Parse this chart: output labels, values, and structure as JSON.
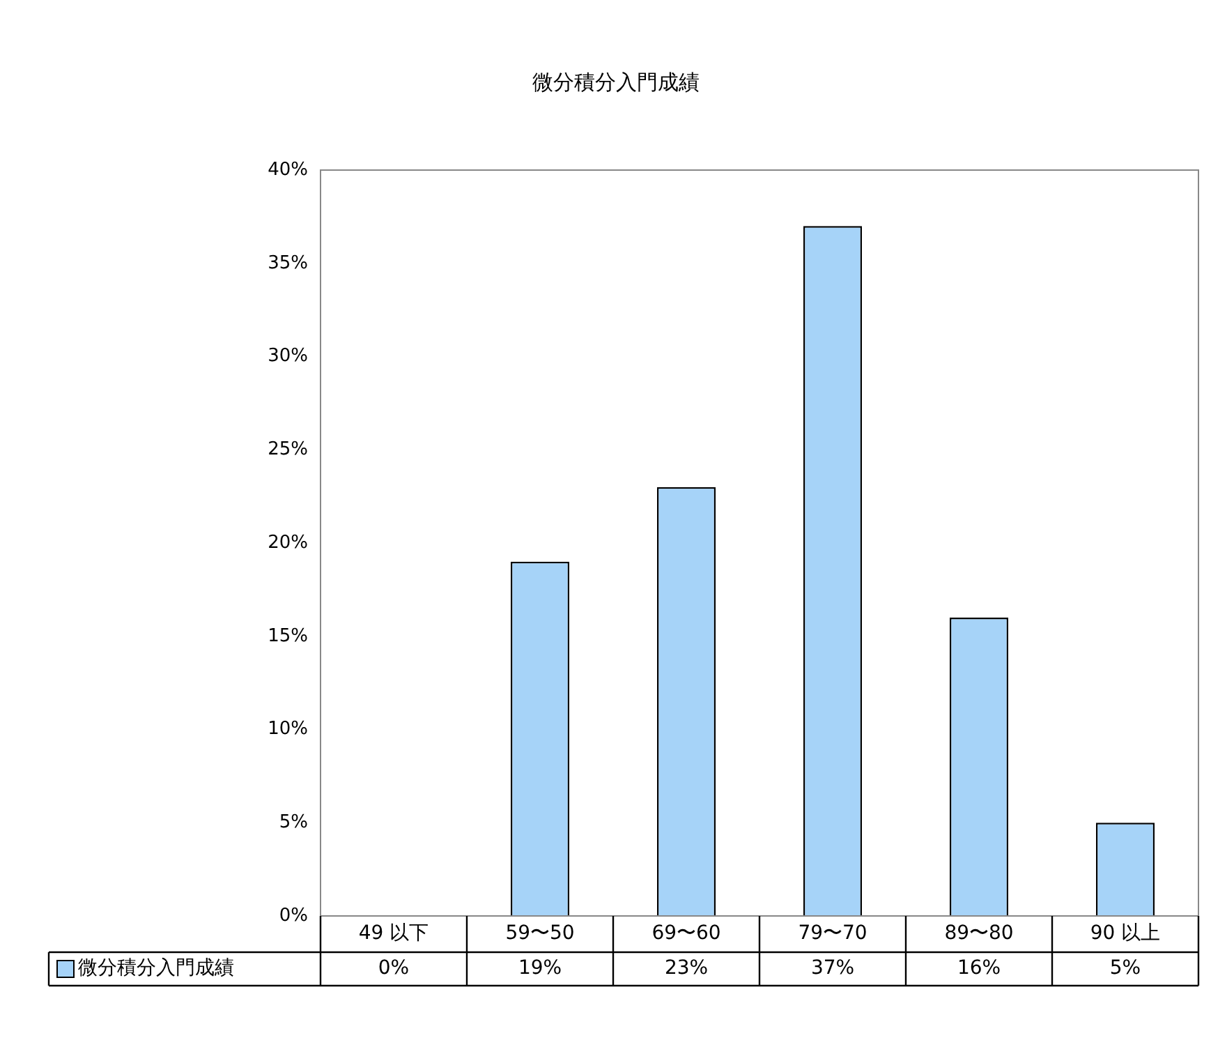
{
  "chart_data": {
    "type": "bar",
    "title": "微分積分入門成績",
    "categories": [
      "49 以下",
      "59〜50",
      "69〜60",
      "79〜70",
      "89〜80",
      "90 以上"
    ],
    "series": [
      {
        "name": "微分積分入門成績",
        "color": "#a6d3f8",
        "values": [
          0,
          19,
          23,
          37,
          16,
          5
        ],
        "value_labels": [
          "0%",
          "19%",
          "23%",
          "37%",
          "16%",
          "5%"
        ]
      }
    ],
    "ylim": [
      0,
      40
    ],
    "yticks": [
      {
        "value": 0,
        "label": "0%"
      },
      {
        "value": 5,
        "label": "5%"
      },
      {
        "value": 10,
        "label": "10%"
      },
      {
        "value": 15,
        "label": "15%"
      },
      {
        "value": 20,
        "label": "20%"
      },
      {
        "value": 25,
        "label": "25%"
      },
      {
        "value": 30,
        "label": "30%"
      },
      {
        "value": 35,
        "label": "35%"
      },
      {
        "value": 40,
        "label": "40%"
      }
    ],
    "grid": false,
    "legend": "bottom"
  }
}
